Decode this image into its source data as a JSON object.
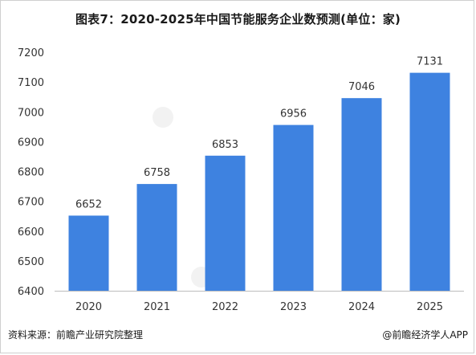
{
  "title": "图表7：2020-2025年中国节能服务企业数预测(单位：家)",
  "footer": {
    "source": "资料来源：前瞻产业研究院整理",
    "credit": "@前瞻经济学人APP"
  },
  "colors": {
    "bar": "#3e82e0",
    "axis": "#bdbdbd",
    "text": "#333333"
  },
  "chart_data": {
    "type": "bar",
    "categories": [
      "2020",
      "2021",
      "2022",
      "2023",
      "2024",
      "2025"
    ],
    "values": [
      6652,
      6758,
      6853,
      6956,
      7046,
      7131
    ],
    "ylim": [
      6400,
      7200
    ],
    "yticks": [
      6400,
      6500,
      6600,
      6700,
      6800,
      6900,
      7000,
      7100,
      7200
    ],
    "grid": false,
    "legend": "none"
  }
}
